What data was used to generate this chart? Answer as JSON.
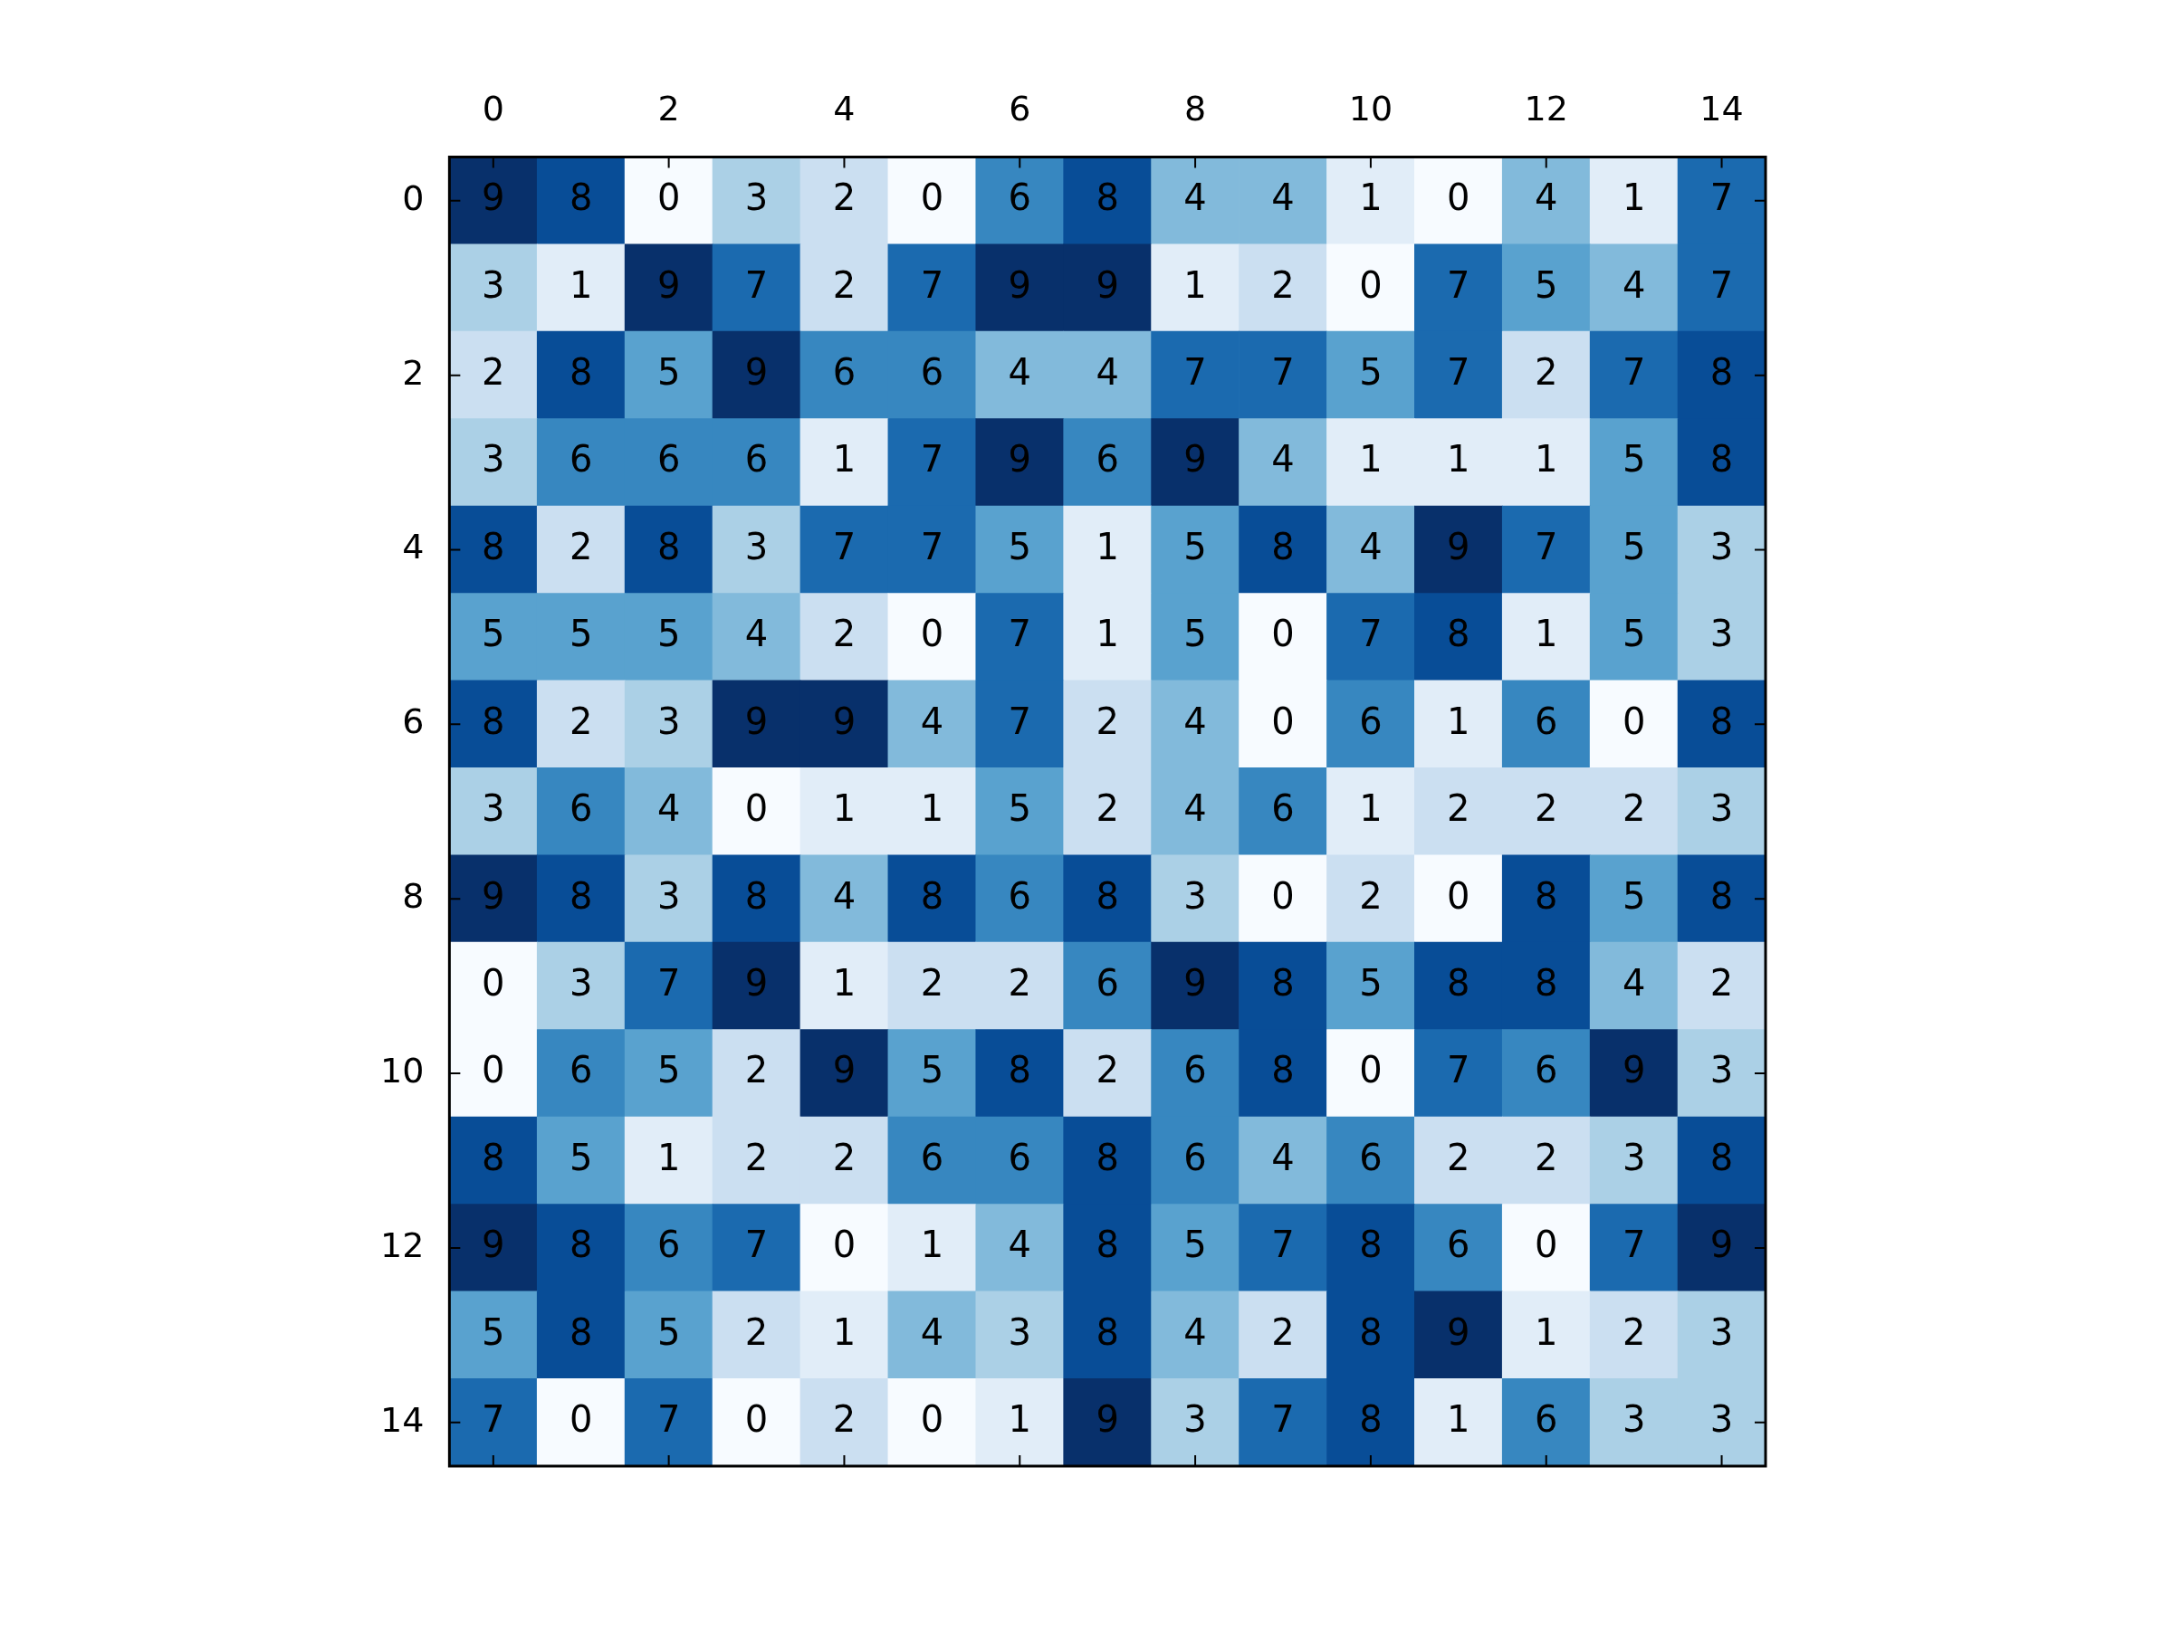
{
  "chart_data": {
    "type": "heatmap",
    "categories": [
      "0",
      null,
      "2",
      null,
      "4",
      null,
      "6",
      null,
      "8",
      null,
      "10",
      null,
      "12",
      null,
      "14"
    ],
    "y_categories": [
      "0",
      null,
      "2",
      null,
      "4",
      null,
      "6",
      null,
      "8",
      null,
      "10",
      null,
      "12",
      null,
      "14"
    ],
    "cells": [
      [
        9,
        8,
        0,
        3,
        2,
        0,
        6,
        8,
        4,
        4,
        1,
        0,
        4,
        1,
        7
      ],
      [
        3,
        1,
        9,
        7,
        2,
        7,
        9,
        9,
        1,
        2,
        0,
        7,
        5,
        4,
        7
      ],
      [
        2,
        8,
        5,
        9,
        6,
        6,
        4,
        4,
        7,
        7,
        5,
        7,
        2,
        7,
        8
      ],
      [
        3,
        6,
        6,
        6,
        1,
        7,
        9,
        6,
        9,
        4,
        1,
        1,
        1,
        5,
        8
      ],
      [
        8,
        2,
        8,
        3,
        7,
        7,
        5,
        1,
        5,
        8,
        4,
        9,
        7,
        5,
        3
      ],
      [
        5,
        5,
        5,
        4,
        2,
        0,
        7,
        1,
        5,
        0,
        7,
        8,
        1,
        5,
        3
      ],
      [
        8,
        2,
        3,
        9,
        9,
        4,
        7,
        2,
        4,
        0,
        6,
        1,
        6,
        0,
        8
      ],
      [
        3,
        6,
        4,
        0,
        1,
        1,
        5,
        2,
        4,
        6,
        1,
        2,
        2,
        2,
        3
      ],
      [
        9,
        8,
        3,
        8,
        4,
        8,
        6,
        8,
        3,
        0,
        2,
        0,
        8,
        5,
        8
      ],
      [
        0,
        3,
        7,
        9,
        1,
        2,
        2,
        6,
        9,
        8,
        5,
        8,
        8,
        4,
        2
      ],
      [
        0,
        6,
        5,
        2,
        9,
        5,
        8,
        2,
        6,
        8,
        0,
        7,
        6,
        9,
        3
      ],
      [
        8,
        5,
        1,
        2,
        2,
        6,
        6,
        8,
        6,
        4,
        6,
        2,
        2,
        3,
        8
      ],
      [
        9,
        8,
        6,
        7,
        0,
        1,
        4,
        8,
        5,
        7,
        8,
        6,
        0,
        7,
        9
      ],
      [
        5,
        8,
        5,
        2,
        1,
        4,
        3,
        8,
        4,
        2,
        8,
        9,
        1,
        2,
        3
      ],
      [
        7,
        0,
        7,
        0,
        2,
        0,
        1,
        9,
        3,
        7,
        8,
        1,
        6,
        3,
        3
      ]
    ],
    "data_labels": true
  }
}
